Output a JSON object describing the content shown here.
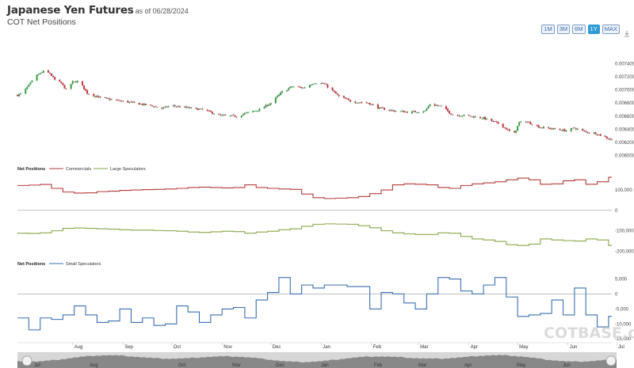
{
  "header": {
    "title": "Japanese Yen Futures",
    "as_of": "as of 06/28/2024",
    "subtitle": "COT Net Positions"
  },
  "range_buttons": [
    {
      "label": "1M",
      "active": false
    },
    {
      "label": "3M",
      "active": false
    },
    {
      "label": "6M",
      "active": false
    },
    {
      "label": "1Y",
      "active": true
    },
    {
      "label": "MAX",
      "active": false
    }
  ],
  "watermark": "COTBASE.com",
  "colors": {
    "up": "#2e9e3e",
    "down": "#c8323c",
    "commercials": "#b33a3a",
    "large_speculators": "#8aa54b",
    "small_speculators": "#3a6fb0",
    "zero_line": "#999999",
    "navigator": "#d7d7d7"
  },
  "chart_data": [
    {
      "type": "candlestick",
      "x_range": [
        "2023-06-28",
        "2024-06-28"
      ],
      "ylim": [
        0.0059,
        0.0075
      ],
      "y_ticks": [
        "0.006000",
        "0.006200",
        "0.006400",
        "0.006600",
        "0.006800",
        "0.007000",
        "0.007200",
        "0.007400"
      ],
      "close_anchors": [
        [
          "2023-06-28",
          0.00692
        ],
        [
          "2023-07-01",
          0.00695
        ],
        [
          "2023-07-06",
          0.0071
        ],
        [
          "2023-07-10",
          0.00722
        ],
        [
          "2023-07-14",
          0.00728
        ],
        [
          "2023-07-18",
          0.00725
        ],
        [
          "2023-07-21",
          0.00715
        ],
        [
          "2023-07-25",
          0.0071
        ],
        [
          "2023-07-28",
          0.007
        ],
        [
          "2023-08-01",
          0.00712
        ],
        [
          "2023-08-05",
          0.00713
        ],
        [
          "2023-08-10",
          0.00695
        ],
        [
          "2023-08-18",
          0.00688
        ],
        [
          "2023-08-28",
          0.00684
        ],
        [
          "2023-09-08",
          0.0068
        ],
        [
          "2023-09-18",
          0.00676
        ],
        [
          "2023-09-25",
          0.00672
        ],
        [
          "2023-10-01",
          0.00676
        ],
        [
          "2023-10-10",
          0.00673
        ],
        [
          "2023-10-20",
          0.0067
        ],
        [
          "2023-10-31",
          0.00661
        ],
        [
          "2023-11-10",
          0.0066
        ],
        [
          "2023-11-15",
          0.00664
        ],
        [
          "2023-11-24",
          0.0067
        ],
        [
          "2023-12-01",
          0.0068
        ],
        [
          "2023-12-08",
          0.00697
        ],
        [
          "2023-12-14",
          0.00705
        ],
        [
          "2023-12-21",
          0.00703
        ],
        [
          "2023-12-28",
          0.00711
        ],
        [
          "2024-01-03",
          0.00709
        ],
        [
          "2024-01-12",
          0.0069
        ],
        [
          "2024-01-20",
          0.00682
        ],
        [
          "2024-01-30",
          0.0068
        ],
        [
          "2024-02-06",
          0.00672
        ],
        [
          "2024-02-15",
          0.00668
        ],
        [
          "2024-02-25",
          0.00666
        ],
        [
          "2024-03-05",
          0.00668
        ],
        [
          "2024-03-08",
          0.00678
        ],
        [
          "2024-03-15",
          0.00675
        ],
        [
          "2024-03-22",
          0.00662
        ],
        [
          "2024-03-30",
          0.00661
        ],
        [
          "2024-04-10",
          0.00657
        ],
        [
          "2024-04-20",
          0.00648
        ],
        [
          "2024-04-26",
          0.00637
        ],
        [
          "2024-04-29",
          0.00634
        ],
        [
          "2024-05-02",
          0.0065
        ],
        [
          "2024-05-06",
          0.00652
        ],
        [
          "2024-05-15",
          0.00643
        ],
        [
          "2024-05-22",
          0.00641
        ],
        [
          "2024-05-31",
          0.00638
        ],
        [
          "2024-06-05",
          0.00642
        ],
        [
          "2024-06-12",
          0.00636
        ],
        [
          "2024-06-18",
          0.00634
        ],
        [
          "2024-06-22",
          0.0063
        ],
        [
          "2024-06-28",
          0.00624
        ]
      ]
    },
    {
      "type": "step-line",
      "panel_title": "Net Positions",
      "ylim": [
        -210000,
        170000
      ],
      "y_ticks": [
        {
          "value": 100000,
          "label": "100,000"
        },
        {
          "value": 0,
          "label": "0"
        },
        {
          "value": -100000,
          "label": "-100,000"
        },
        {
          "value": -200000,
          "label": "-200,000"
        }
      ],
      "series": [
        {
          "name": "Commercials",
          "points": [
            [
              "2023-06-28",
              122000
            ],
            [
              "2023-07-05",
              124000
            ],
            [
              "2023-07-12",
              127000
            ],
            [
              "2023-07-19",
              108000
            ],
            [
              "2023-07-26",
              90000
            ],
            [
              "2023-08-02",
              85000
            ],
            [
              "2023-08-09",
              86000
            ],
            [
              "2023-08-16",
              92000
            ],
            [
              "2023-08-23",
              94000
            ],
            [
              "2023-08-30",
              98000
            ],
            [
              "2023-09-06",
              100000
            ],
            [
              "2023-09-13",
              102000
            ],
            [
              "2023-09-20",
              103000
            ],
            [
              "2023-09-27",
              105000
            ],
            [
              "2023-10-04",
              108000
            ],
            [
              "2023-10-11",
              112000
            ],
            [
              "2023-10-18",
              114000
            ],
            [
              "2023-10-25",
              112000
            ],
            [
              "2023-11-01",
              110000
            ],
            [
              "2023-11-08",
              112000
            ],
            [
              "2023-11-15",
              125000
            ],
            [
              "2023-11-22",
              112000
            ],
            [
              "2023-11-29",
              108000
            ],
            [
              "2023-12-06",
              105000
            ],
            [
              "2023-12-13",
              103000
            ],
            [
              "2023-12-20",
              80000
            ],
            [
              "2023-12-27",
              62000
            ],
            [
              "2024-01-03",
              58000
            ],
            [
              "2024-01-10",
              60000
            ],
            [
              "2024-01-17",
              62000
            ],
            [
              "2024-01-24",
              68000
            ],
            [
              "2024-01-31",
              82000
            ],
            [
              "2024-02-07",
              100000
            ],
            [
              "2024-02-14",
              125000
            ],
            [
              "2024-02-21",
              130000
            ],
            [
              "2024-02-28",
              128000
            ],
            [
              "2024-03-06",
              125000
            ],
            [
              "2024-03-13",
              112000
            ],
            [
              "2024-03-20",
              108000
            ],
            [
              "2024-03-27",
              122000
            ],
            [
              "2024-04-03",
              130000
            ],
            [
              "2024-04-10",
              135000
            ],
            [
              "2024-04-17",
              140000
            ],
            [
              "2024-04-24",
              150000
            ],
            [
              "2024-05-01",
              158000
            ],
            [
              "2024-05-08",
              150000
            ],
            [
              "2024-05-15",
              128000
            ],
            [
              "2024-05-22",
              130000
            ],
            [
              "2024-05-29",
              145000
            ],
            [
              "2024-06-05",
              150000
            ],
            [
              "2024-06-12",
              128000
            ],
            [
              "2024-06-19",
              140000
            ],
            [
              "2024-06-26",
              162000
            ]
          ]
        },
        {
          "name": "Large Speculators",
          "points": [
            [
              "2023-06-28",
              -112000
            ],
            [
              "2023-07-05",
              -113000
            ],
            [
              "2023-07-12",
              -110000
            ],
            [
              "2023-07-19",
              -100000
            ],
            [
              "2023-07-26",
              -88000
            ],
            [
              "2023-08-02",
              -86000
            ],
            [
              "2023-08-09",
              -88000
            ],
            [
              "2023-08-16",
              -90000
            ],
            [
              "2023-08-23",
              -92000
            ],
            [
              "2023-08-30",
              -95000
            ],
            [
              "2023-09-06",
              -97000
            ],
            [
              "2023-09-13",
              -97000
            ],
            [
              "2023-09-20",
              -99000
            ],
            [
              "2023-09-27",
              -100000
            ],
            [
              "2023-10-04",
              -102000
            ],
            [
              "2023-10-11",
              -106000
            ],
            [
              "2023-10-18",
              -108000
            ],
            [
              "2023-10-25",
              -105000
            ],
            [
              "2023-11-01",
              -102000
            ],
            [
              "2023-11-08",
              -104000
            ],
            [
              "2023-11-15",
              -112000
            ],
            [
              "2023-11-22",
              -106000
            ],
            [
              "2023-11-29",
              -102000
            ],
            [
              "2023-12-06",
              -95000
            ],
            [
              "2023-12-13",
              -90000
            ],
            [
              "2023-12-20",
              -78000
            ],
            [
              "2023-12-27",
              -68000
            ],
            [
              "2024-01-03",
              -66000
            ],
            [
              "2024-01-10",
              -67000
            ],
            [
              "2024-01-17",
              -68000
            ],
            [
              "2024-01-24",
              -75000
            ],
            [
              "2024-01-31",
              -85000
            ],
            [
              "2024-02-07",
              -100000
            ],
            [
              "2024-02-14",
              -110000
            ],
            [
              "2024-02-21",
              -115000
            ],
            [
              "2024-02-28",
              -118000
            ],
            [
              "2024-03-06",
              -118000
            ],
            [
              "2024-03-13",
              -110000
            ],
            [
              "2024-03-20",
              -112000
            ],
            [
              "2024-03-27",
              -128000
            ],
            [
              "2024-04-03",
              -140000
            ],
            [
              "2024-04-10",
              -145000
            ],
            [
              "2024-04-17",
              -152000
            ],
            [
              "2024-04-24",
              -168000
            ],
            [
              "2024-05-01",
              -172000
            ],
            [
              "2024-05-08",
              -165000
            ],
            [
              "2024-05-15",
              -140000
            ],
            [
              "2024-05-22",
              -145000
            ],
            [
              "2024-05-29",
              -148000
            ],
            [
              "2024-06-05",
              -150000
            ],
            [
              "2024-06-12",
              -140000
            ],
            [
              "2024-06-19",
              -145000
            ],
            [
              "2024-06-26",
              -172000
            ]
          ]
        }
      ]
    },
    {
      "type": "step-line",
      "panel_title": "Net Positions",
      "ylim": [
        -16000,
        7000
      ],
      "y_ticks": [
        {
          "value": 5000,
          "label": "5,000"
        },
        {
          "value": 0,
          "label": "0"
        },
        {
          "value": -5000,
          "label": "-5,000"
        },
        {
          "value": -10000,
          "label": "-10,000"
        },
        {
          "value": -15000,
          "label": "-15,000"
        }
      ],
      "series": [
        {
          "name": "Small Speculators",
          "points": [
            [
              "2023-06-28",
              -8000
            ],
            [
              "2023-07-05",
              -12000
            ],
            [
              "2023-07-12",
              -8000
            ],
            [
              "2023-07-19",
              -8500
            ],
            [
              "2023-07-26",
              -7000
            ],
            [
              "2023-08-02",
              -4000
            ],
            [
              "2023-08-09",
              -7000
            ],
            [
              "2023-08-16",
              -9500
            ],
            [
              "2023-08-23",
              -9000
            ],
            [
              "2023-08-30",
              -5000
            ],
            [
              "2023-09-06",
              -9500
            ],
            [
              "2023-09-13",
              -8000
            ],
            [
              "2023-09-20",
              -10500
            ],
            [
              "2023-09-27",
              -10000
            ],
            [
              "2023-10-04",
              -4000
            ],
            [
              "2023-10-11",
              -6000
            ],
            [
              "2023-10-18",
              -9500
            ],
            [
              "2023-10-25",
              -7000
            ],
            [
              "2023-11-01",
              -5000
            ],
            [
              "2023-11-08",
              -4500
            ],
            [
              "2023-11-15",
              -8000
            ],
            [
              "2023-11-22",
              -2000
            ],
            [
              "2023-11-29",
              500
            ],
            [
              "2023-12-06",
              5500
            ],
            [
              "2023-12-13",
              0
            ],
            [
              "2023-12-20",
              3000
            ],
            [
              "2023-12-27",
              2000
            ],
            [
              "2024-01-03",
              3000
            ],
            [
              "2024-01-10",
              3000
            ],
            [
              "2024-01-17",
              2500
            ],
            [
              "2024-01-24",
              2500
            ],
            [
              "2024-01-31",
              -5000
            ],
            [
              "2024-02-07",
              500
            ],
            [
              "2024-02-14",
              0
            ],
            [
              "2024-02-21",
              -3000
            ],
            [
              "2024-02-28",
              -5000
            ],
            [
              "2024-03-06",
              0
            ],
            [
              "2024-03-13",
              5500
            ],
            [
              "2024-03-20",
              5000
            ],
            [
              "2024-03-27",
              1000
            ],
            [
              "2024-04-03",
              0
            ],
            [
              "2024-04-10",
              3000
            ],
            [
              "2024-04-17",
              5500
            ],
            [
              "2024-04-24",
              -1000
            ],
            [
              "2024-05-01",
              -7500
            ],
            [
              "2024-05-08",
              -7000
            ],
            [
              "2024-05-15",
              -6500
            ],
            [
              "2024-05-22",
              -2000
            ],
            [
              "2024-05-29",
              -7000
            ],
            [
              "2024-06-05",
              2000
            ],
            [
              "2024-06-12",
              -7000
            ],
            [
              "2024-06-19",
              -11000
            ],
            [
              "2024-06-26",
              -7500
            ]
          ]
        }
      ]
    }
  ],
  "x_axis": {
    "months": [
      "Aug",
      "Sep",
      "Oct",
      "Nov",
      "Dec",
      "Jan",
      "Feb",
      "Mar",
      "Apr",
      "May",
      "Jun",
      "Jul"
    ],
    "month_dates": [
      "2023-08-01",
      "2023-09-01",
      "2023-10-01",
      "2023-11-01",
      "2023-12-01",
      "2024-01-01",
      "2024-02-01",
      "2024-03-01",
      "2024-04-01",
      "2024-05-01",
      "2024-06-01",
      "2024-07-01"
    ]
  },
  "navigator": {
    "labels": [
      "Jul",
      "Aug",
      "Oct",
      "Nov",
      "Dec",
      "Jan",
      "Feb",
      "Mar",
      "Apr",
      "May",
      "Jun"
    ]
  }
}
